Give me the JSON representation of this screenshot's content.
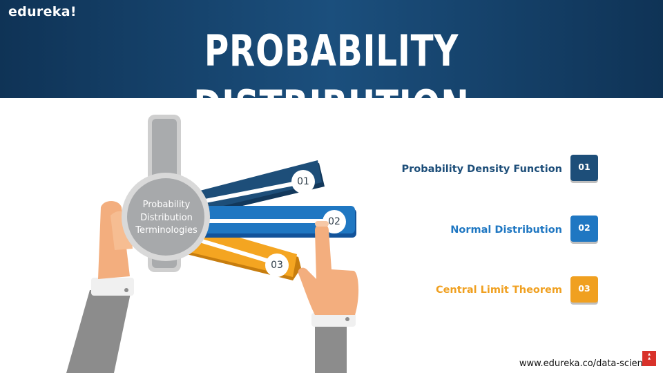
{
  "brand": {
    "logo": "edureka!"
  },
  "slide": {
    "title": "PROBABILITY DISTRIBUTION"
  },
  "hub": {
    "line1": "Probability",
    "line2": "Distribution",
    "line3": "Terminologies"
  },
  "colors": {
    "header": "#1b4f7d",
    "navy": "#1d4e79",
    "blue": "#1f77c2",
    "orange": "#f0a020",
    "gray": "#a7a9ab"
  },
  "blades": [
    {
      "num": "01"
    },
    {
      "num": "02"
    },
    {
      "num": "03"
    }
  ],
  "items": [
    {
      "label": "Probability Density Function",
      "num": "01",
      "color": "#1d4e79"
    },
    {
      "label": "Normal Distribution",
      "num": "02",
      "color": "#1f77c2"
    },
    {
      "label": "Central Limit Theorem",
      "num": "03",
      "color": "#f0a020"
    }
  ],
  "footer": {
    "url": "www.edureka.co/data-science",
    "subscribe_icon": "subscribe-icon"
  }
}
